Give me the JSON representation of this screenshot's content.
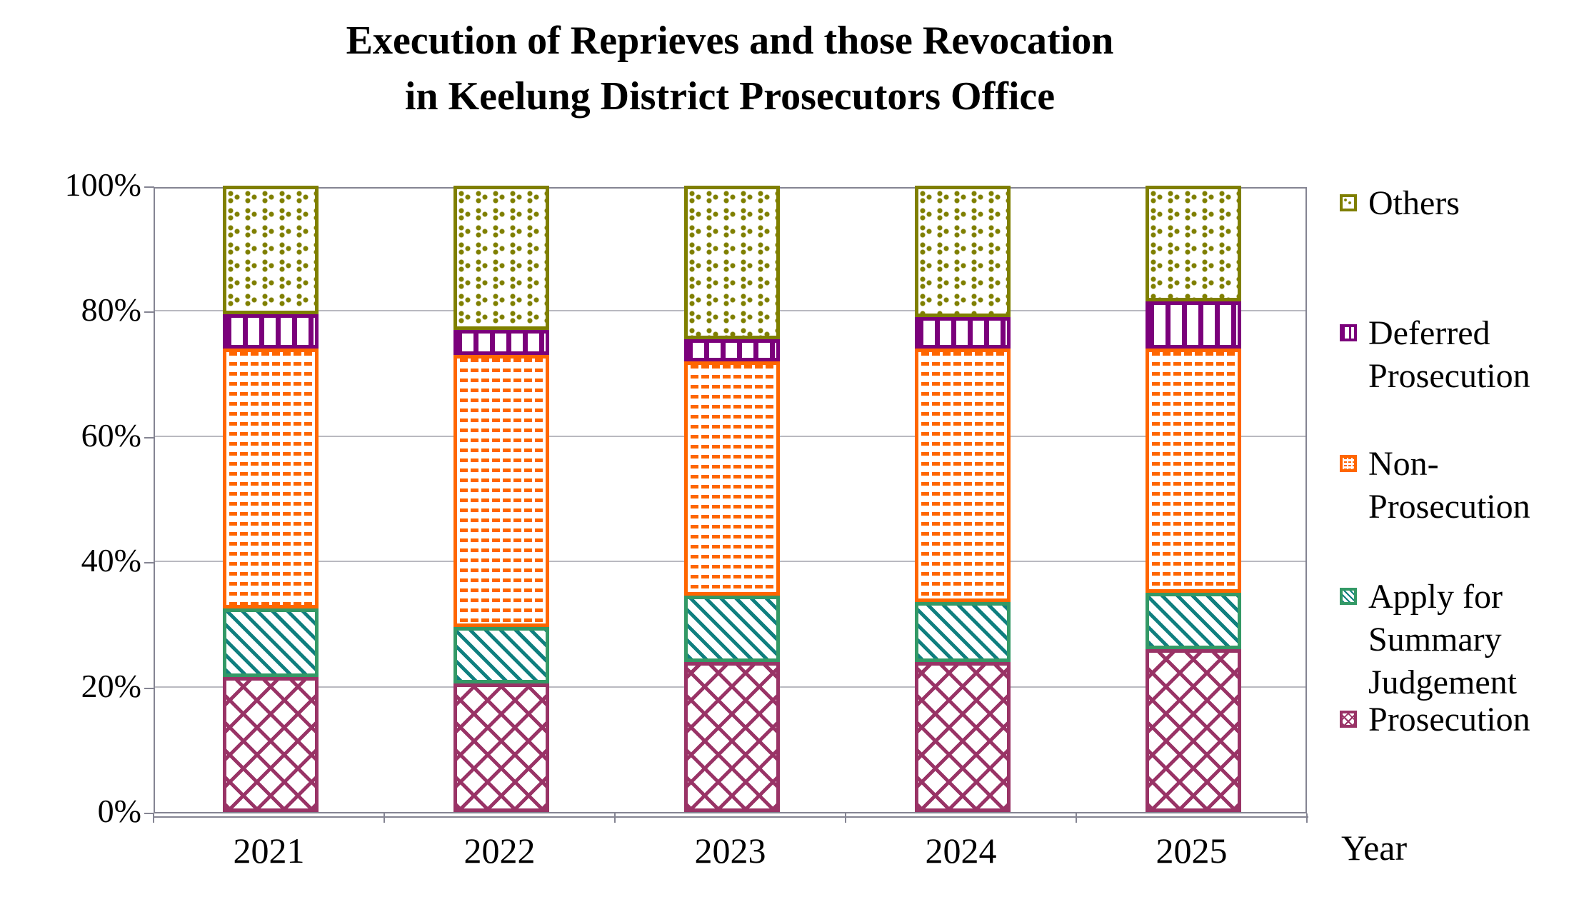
{
  "title": {
    "line1": "Execution of Reprieves and those Revocation",
    "line2": "in Keelung District Prosecutors Office"
  },
  "axes": {
    "y_ticks": [
      "100%",
      "80%",
      "60%",
      "40%",
      "20%",
      "0%"
    ],
    "x_label": "Year"
  },
  "legend": {
    "items": [
      {
        "series": "others",
        "lines": [
          "Others"
        ]
      },
      {
        "series": "deferred",
        "lines": [
          "Deferred",
          "Prosecution"
        ]
      },
      {
        "series": "nonpros",
        "lines": [
          "Non-",
          "Prosecution"
        ]
      },
      {
        "series": "apply",
        "lines": [
          "Apply for",
          "Summary",
          "Judgement"
        ]
      },
      {
        "series": "prosecution",
        "lines": [
          "Prosecution"
        ]
      }
    ]
  },
  "chart_data": {
    "type": "bar",
    "subtype": "stacked-100-percent",
    "title": "Execution of Reprieves and those Revocation in Keelung District Prosecutors Office",
    "xlabel": "Year",
    "ylabel": "",
    "ylim": [
      0,
      100
    ],
    "grid": true,
    "legend_position": "right",
    "categories": [
      "2021",
      "2022",
      "2023",
      "2024",
      "2025"
    ],
    "series": [
      {
        "name": "Prosecution",
        "key": "prosecution",
        "color": "#993366",
        "border": "#993366",
        "pattern": "diagonal-crosshatch",
        "values": [
          21.5,
          20.5,
          24.0,
          24.0,
          26.0
        ]
      },
      {
        "name": "Apply for Summary Judgement",
        "key": "apply",
        "color": "#0f7f7f",
        "border": "#339966",
        "pattern": "diagonal-hatch",
        "values": [
          11.0,
          9.0,
          10.5,
          9.5,
          9.0
        ]
      },
      {
        "name": "Non-Prosecution",
        "key": "nonpros",
        "color": "#ff6600",
        "border": "#ff6600",
        "pattern": "horizontal-waves",
        "values": [
          41.5,
          43.5,
          37.5,
          40.5,
          39.0
        ]
      },
      {
        "name": "Deferred Prosecution",
        "key": "deferred",
        "color": "#7b007b",
        "border": "#7b007b",
        "pattern": "vertical-bars",
        "values": [
          5.5,
          4.0,
          3.5,
          5.0,
          7.5
        ]
      },
      {
        "name": "Others",
        "key": "others",
        "color": "#7f7f00",
        "border": "#7f7f00",
        "pattern": "dots",
        "values": [
          20.5,
          23.0,
          24.5,
          21.0,
          18.5
        ]
      }
    ]
  }
}
